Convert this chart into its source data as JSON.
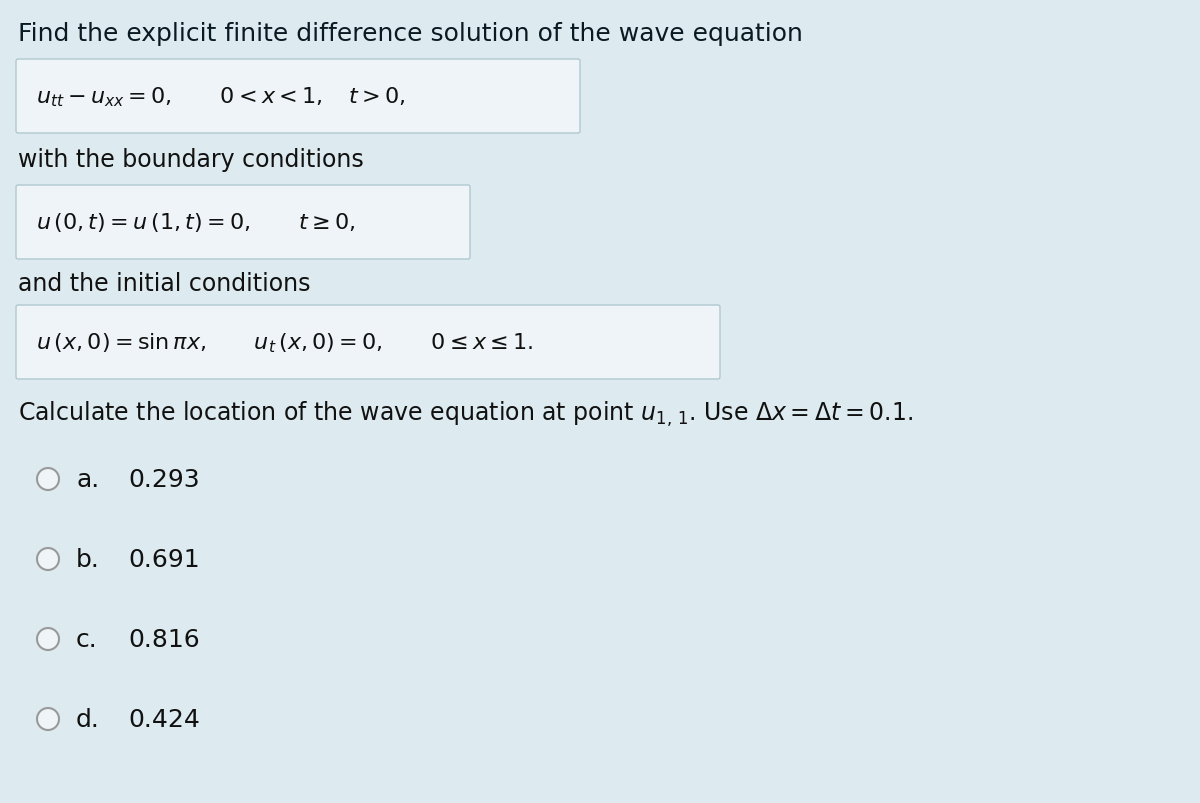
{
  "background_color": "#ddeaef",
  "title_text": "Find the explicit finite difference solution of the wave equation",
  "title_fontsize": 18,
  "box1_math": "$u_{tt} - u_{xx} = 0, \\qquad 0 < x < 1, \\quad t > 0,$",
  "box2_math": "$u\\,(0, t) = u\\,(1, t) = 0, \\qquad t \\geq 0,$",
  "box3_math": "$u\\,(x, 0) = \\sin \\pi x, \\qquad u_t\\,(x, 0) = 0, \\qquad 0 \\leq x \\leq 1.$",
  "label_boundary": "with the boundary conditions",
  "label_initial": "and the initial conditions",
  "calc_text": "Calculate the location of the wave equation at point $\\boldsymbol{u_{1,\\,1}}$. Use $\\Delta x = \\Delta t = 0.1$.",
  "options": [
    {
      "letter": "a.",
      "value": "0.293"
    },
    {
      "letter": "b.",
      "value": "0.691"
    },
    {
      "letter": "c.",
      "value": "0.816"
    },
    {
      "letter": "d.",
      "value": "0.424"
    }
  ],
  "box_facecolor": "#eef4f7",
  "box_edgecolor": "#b0c8d0",
  "text_color": "#111111",
  "math_fontsize": 16,
  "body_fontsize": 17,
  "option_fontsize": 18,
  "title_color": "#0a1a22"
}
